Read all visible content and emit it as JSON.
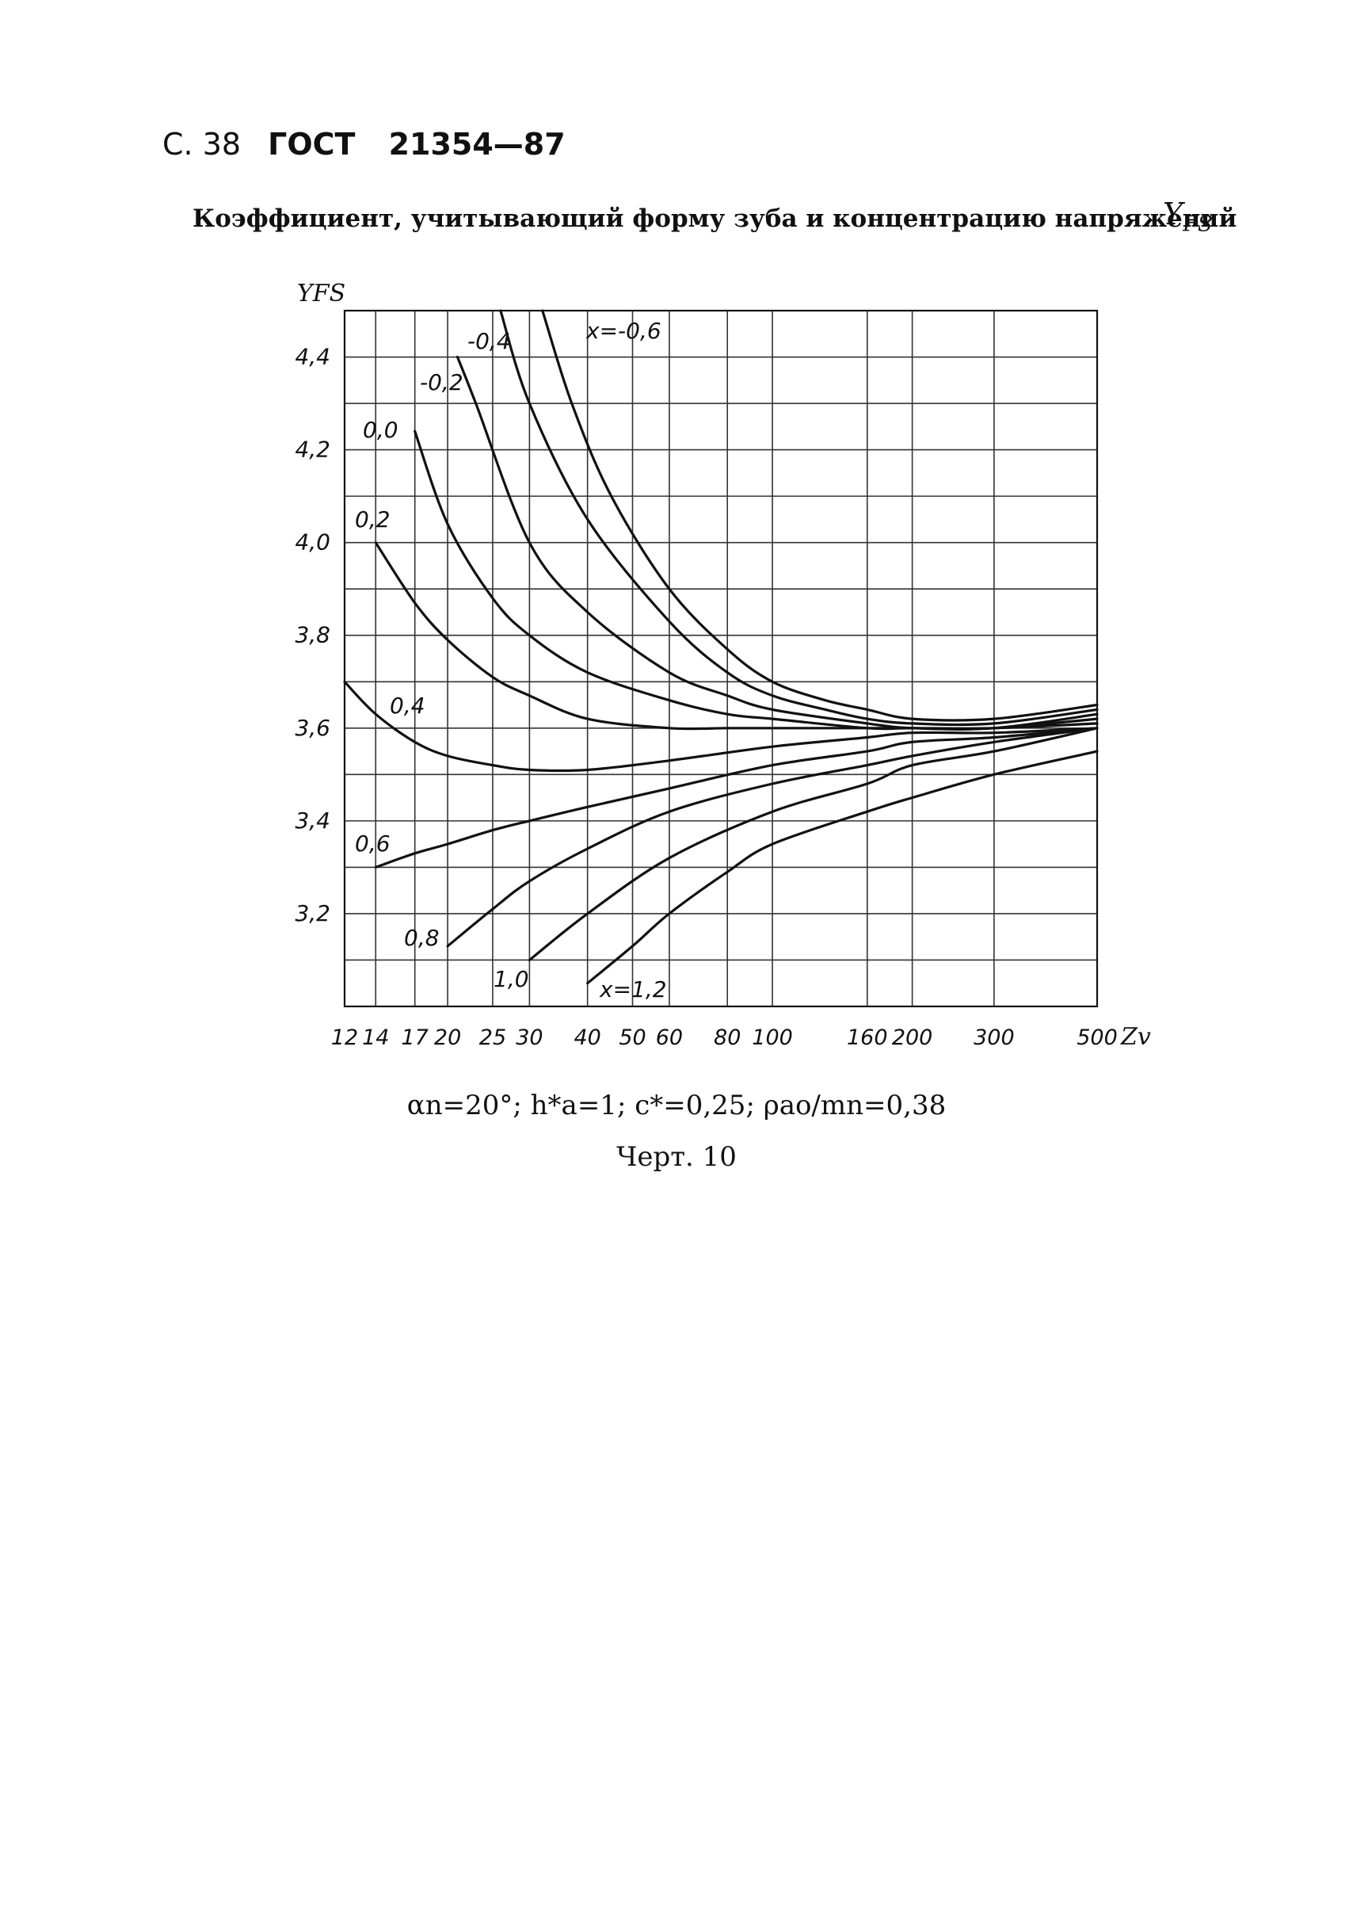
{
  "header": {
    "page": "С. 38",
    "standard": "ГОСТ",
    "number": "21354—87"
  },
  "title": "Коэффициент, учитывающий форму зуба и концентрацию напряжений",
  "symbol": {
    "main": "Y",
    "sub": "FS"
  },
  "params": "αn=20°; h*a=1; c*=0,25; ρao/mn=0,38",
  "caption": "Черт. 10",
  "chart_data": {
    "type": "line",
    "xscale": "log",
    "ylabel": "YFS",
    "xlabel": "Zv",
    "ylim": [
      3.0,
      4.5
    ],
    "xlim": [
      12,
      500
    ],
    "xticks": [
      12,
      14,
      17,
      20,
      25,
      30,
      40,
      50,
      60,
      80,
      100,
      160,
      200,
      300,
      500
    ],
    "xtick_labels": [
      "12",
      "14",
      "17",
      "20",
      "25",
      "30",
      "40",
      "50",
      "60",
      "80",
      "100",
      "160",
      "200",
      "300",
      "500"
    ],
    "yticks": [
      3.2,
      3.4,
      3.6,
      3.8,
      4.0,
      4.2,
      4.4
    ],
    "ytick_labels": [
      "3,2",
      "3,4",
      "3,6",
      "3,8",
      "4,0",
      "4,2",
      "4,4"
    ],
    "grid": true,
    "series": [
      {
        "name": "x=-0,6",
        "x": [
          32,
          37,
          45,
          60,
          80,
          100,
          130,
          160,
          200,
          300,
          500
        ],
        "y": [
          4.5,
          4.3,
          4.1,
          3.9,
          3.77,
          3.7,
          3.66,
          3.64,
          3.62,
          3.62,
          3.65
        ]
      },
      {
        "name": "-0,4",
        "x": [
          26,
          30,
          40,
          60,
          80,
          100,
          130,
          160,
          200,
          300,
          500
        ],
        "y": [
          4.5,
          4.3,
          4.05,
          3.83,
          3.72,
          3.67,
          3.64,
          3.62,
          3.61,
          3.61,
          3.64
        ]
      },
      {
        "name": "-0,2",
        "x": [
          21,
          23,
          30,
          40,
          60,
          80,
          100,
          160,
          200,
          300,
          500
        ],
        "y": [
          4.4,
          4.3,
          4.0,
          3.85,
          3.72,
          3.67,
          3.64,
          3.61,
          3.6,
          3.6,
          3.63
        ]
      },
      {
        "name": "0,0",
        "x": [
          17,
          20,
          25,
          30,
          40,
          60,
          80,
          100,
          160,
          200,
          300,
          500
        ],
        "y": [
          4.24,
          4.04,
          3.88,
          3.8,
          3.72,
          3.66,
          3.63,
          3.62,
          3.6,
          3.6,
          3.6,
          3.62
        ]
      },
      {
        "name": "0,2",
        "x": [
          14,
          17,
          20,
          25,
          30,
          40,
          60,
          80,
          100,
          160,
          200,
          300,
          500
        ],
        "y": [
          4.0,
          3.87,
          3.79,
          3.71,
          3.67,
          3.62,
          3.6,
          3.6,
          3.6,
          3.6,
          3.6,
          3.6,
          3.61
        ]
      },
      {
        "name": "0,4",
        "x": [
          12,
          14,
          17,
          20,
          25,
          30,
          40,
          60,
          100,
          160,
          200,
          300,
          500
        ],
        "y": [
          3.7,
          3.63,
          3.57,
          3.54,
          3.52,
          3.51,
          3.51,
          3.53,
          3.56,
          3.58,
          3.59,
          3.59,
          3.6
        ]
      },
      {
        "name": "0,6",
        "x": [
          14,
          17,
          20,
          25,
          30,
          40,
          60,
          100,
          160,
          200,
          300,
          500
        ],
        "y": [
          3.3,
          3.33,
          3.35,
          3.38,
          3.4,
          3.43,
          3.47,
          3.52,
          3.55,
          3.57,
          3.58,
          3.6
        ]
      },
      {
        "name": "0,8",
        "x": [
          20,
          25,
          30,
          40,
          60,
          100,
          160,
          200,
          300,
          500
        ],
        "y": [
          3.13,
          3.21,
          3.27,
          3.34,
          3.42,
          3.48,
          3.52,
          3.54,
          3.57,
          3.6
        ]
      },
      {
        "name": "1,0",
        "x": [
          30,
          40,
          60,
          100,
          160,
          200,
          300,
          500
        ],
        "y": [
          3.1,
          3.2,
          3.32,
          3.42,
          3.48,
          3.52,
          3.55,
          3.6
        ]
      },
      {
        "name": "x=1,2",
        "x": [
          40,
          50,
          60,
          80,
          100,
          160,
          200,
          300,
          500
        ],
        "y": [
          3.05,
          3.13,
          3.2,
          3.29,
          3.35,
          3.42,
          3.45,
          3.5,
          3.55
        ]
      }
    ],
    "label_texts": [
      "x=-0,6",
      "-0,4",
      "-0,2",
      "0,0",
      "0,2",
      "0,4",
      "0,6",
      "0,8",
      "1,0",
      "x=1,2"
    ]
  }
}
